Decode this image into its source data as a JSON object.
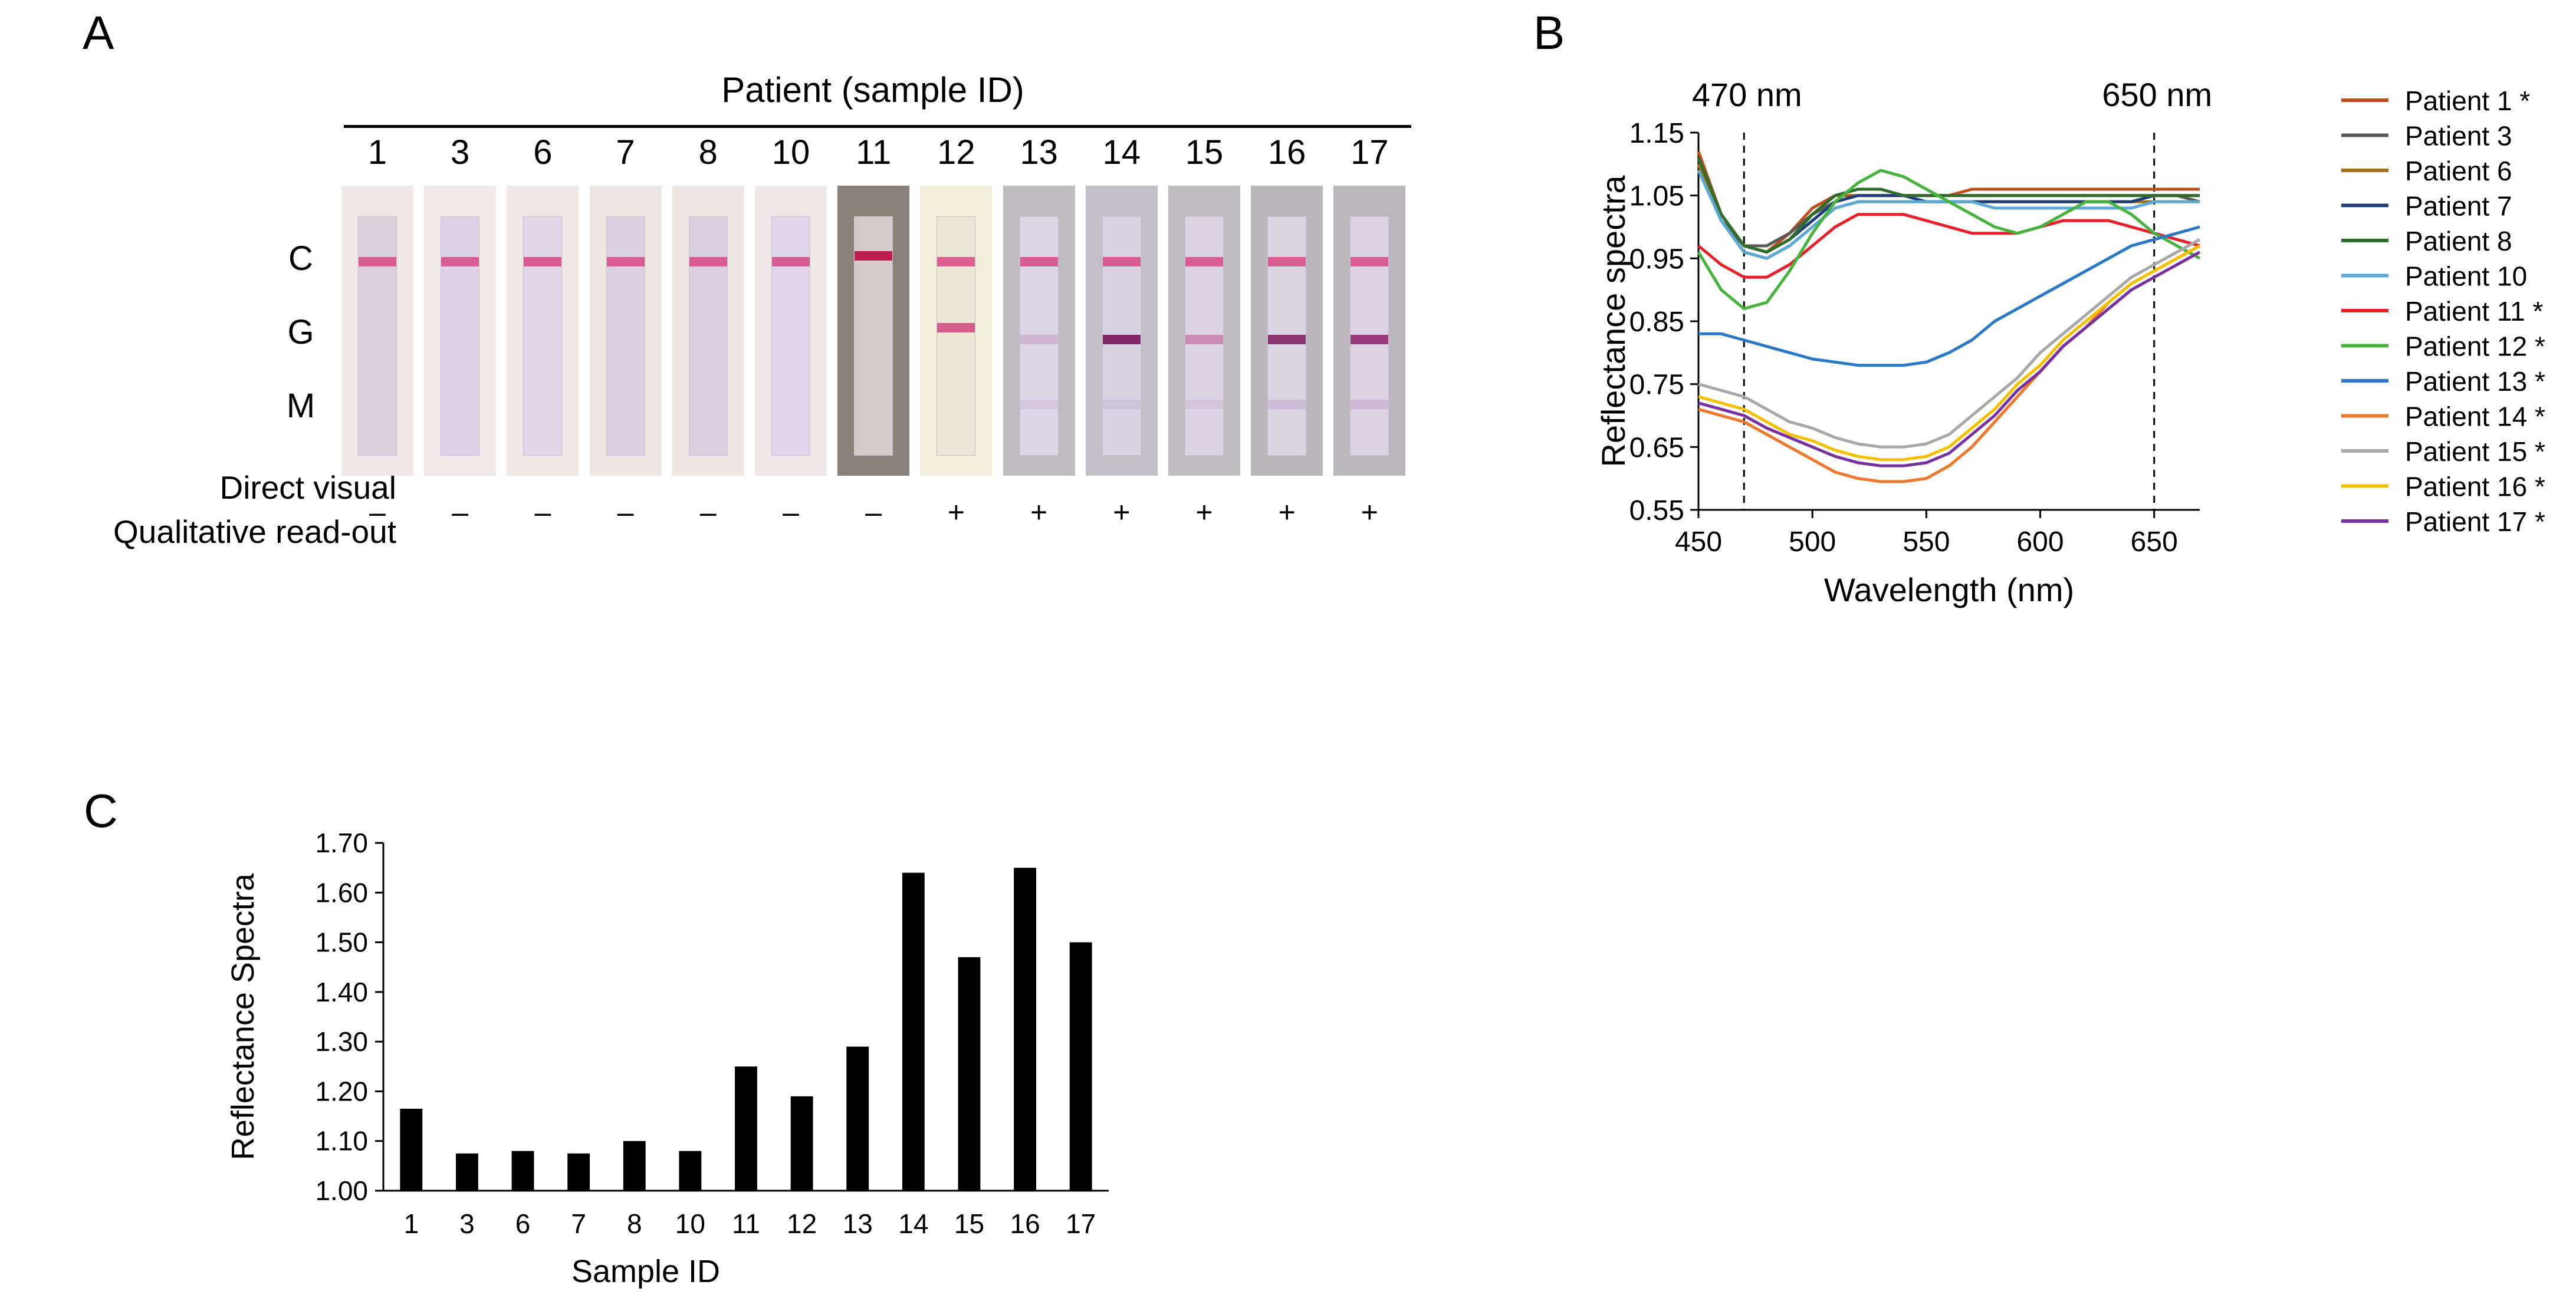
{
  "panels": {
    "a": "A",
    "b": "B",
    "c": "C"
  },
  "panel_a": {
    "title": "Patient (sample ID)",
    "sample_ids": [
      "1",
      "3",
      "6",
      "7",
      "8",
      "10",
      "11",
      "12",
      "13",
      "14",
      "15",
      "16",
      "17"
    ],
    "band_labels": [
      "C",
      "G",
      "M"
    ],
    "row_label_1": "Direct visual",
    "row_label_2": "Qualitative read-out",
    "readouts": [
      "–",
      "–",
      "–",
      "–",
      "–",
      "–",
      "–",
      "+",
      "+",
      "+",
      "+",
      "+",
      "+"
    ]
  },
  "chart_data": [
    {
      "type": "line",
      "xlabel": "Wavelength (nm)",
      "ylabel": "Reflectance spectra",
      "xlim": [
        450,
        670
      ],
      "ylim": [
        0.55,
        1.15
      ],
      "xticks": [
        "450",
        "500",
        "550",
        "600",
        "650"
      ],
      "yticks": [
        "0.55",
        "0.65",
        "0.75",
        "0.85",
        "0.95",
        "1.05",
        "1.15"
      ],
      "annotations": [
        {
          "x": 470,
          "label": "470 nm"
        },
        {
          "x": 650,
          "label": "650 nm"
        }
      ],
      "legend_position": "right",
      "x": [
        450,
        460,
        470,
        480,
        490,
        500,
        510,
        520,
        530,
        540,
        550,
        560,
        570,
        580,
        590,
        600,
        610,
        620,
        630,
        640,
        650,
        660,
        670
      ],
      "series": [
        {
          "name": "Patient 1 *",
          "color": "#c0501a",
          "values": [
            1.12,
            1.02,
            0.97,
            0.96,
            0.99,
            1.03,
            1.05,
            1.05,
            1.05,
            1.05,
            1.05,
            1.05,
            1.06,
            1.06,
            1.06,
            1.06,
            1.06,
            1.06,
            1.06,
            1.06,
            1.06,
            1.06,
            1.06
          ]
        },
        {
          "name": "Patient 3",
          "color": "#5a5a5a",
          "values": [
            1.1,
            1.01,
            0.97,
            0.97,
            0.99,
            1.02,
            1.04,
            1.05,
            1.05,
            1.05,
            1.05,
            1.05,
            1.05,
            1.05,
            1.05,
            1.05,
            1.05,
            1.05,
            1.05,
            1.05,
            1.05,
            1.05,
            1.04
          ]
        },
        {
          "name": "Patient 6",
          "color": "#a86f10",
          "values": [
            1.1,
            1.01,
            0.96,
            0.95,
            0.97,
            1.0,
            1.03,
            1.04,
            1.04,
            1.04,
            1.04,
            1.04,
            1.04,
            1.04,
            1.04,
            1.04,
            1.04,
            1.04,
            1.04,
            1.04,
            1.04,
            1.04,
            1.04
          ]
        },
        {
          "name": "Patient 7",
          "color": "#1f3f7a",
          "values": [
            1.11,
            1.02,
            0.97,
            0.96,
            0.98,
            1.01,
            1.04,
            1.05,
            1.05,
            1.05,
            1.04,
            1.04,
            1.04,
            1.04,
            1.04,
            1.04,
            1.04,
            1.04,
            1.04,
            1.04,
            1.05,
            1.05,
            1.05
          ]
        },
        {
          "name": "Patient 8",
          "color": "#2f6e2a",
          "values": [
            1.11,
            1.02,
            0.97,
            0.96,
            0.98,
            1.02,
            1.05,
            1.06,
            1.06,
            1.05,
            1.05,
            1.05,
            1.05,
            1.05,
            1.05,
            1.05,
            1.05,
            1.05,
            1.05,
            1.05,
            1.05,
            1.05,
            1.05
          ]
        },
        {
          "name": "Patient 10",
          "color": "#5aaad8",
          "values": [
            1.09,
            1.01,
            0.96,
            0.95,
            0.97,
            1.0,
            1.03,
            1.04,
            1.04,
            1.04,
            1.04,
            1.04,
            1.04,
            1.03,
            1.03,
            1.03,
            1.03,
            1.03,
            1.03,
            1.03,
            1.04,
            1.04,
            1.04
          ]
        },
        {
          "name": "Patient 11 *",
          "color": "#e8202a",
          "values": [
            0.97,
            0.94,
            0.92,
            0.92,
            0.94,
            0.97,
            1.0,
            1.02,
            1.02,
            1.02,
            1.01,
            1.0,
            0.99,
            0.99,
            0.99,
            1.0,
            1.01,
            1.01,
            1.01,
            1.0,
            0.99,
            0.98,
            0.97
          ]
        },
        {
          "name": "Patient 12 *",
          "color": "#45b43c",
          "values": [
            0.96,
            0.9,
            0.87,
            0.88,
            0.93,
            0.99,
            1.04,
            1.07,
            1.09,
            1.08,
            1.06,
            1.04,
            1.02,
            1.0,
            0.99,
            1.0,
            1.02,
            1.04,
            1.04,
            1.02,
            0.99,
            0.97,
            0.95
          ]
        },
        {
          "name": "Patient 13 *",
          "color": "#2a78c8",
          "values": [
            0.83,
            0.83,
            0.82,
            0.81,
            0.8,
            0.79,
            0.785,
            0.78,
            0.78,
            0.78,
            0.785,
            0.8,
            0.82,
            0.85,
            0.87,
            0.89,
            0.91,
            0.93,
            0.95,
            0.97,
            0.98,
            0.99,
            1.0
          ]
        },
        {
          "name": "Patient 14 *",
          "color": "#f0782a",
          "values": [
            0.71,
            0.7,
            0.69,
            0.67,
            0.65,
            0.63,
            0.61,
            0.6,
            0.595,
            0.595,
            0.6,
            0.62,
            0.65,
            0.69,
            0.73,
            0.77,
            0.81,
            0.84,
            0.88,
            0.91,
            0.93,
            0.95,
            0.97
          ]
        },
        {
          "name": "Patient 15 *",
          "color": "#a8a8a8",
          "values": [
            0.75,
            0.74,
            0.73,
            0.71,
            0.69,
            0.68,
            0.665,
            0.655,
            0.65,
            0.65,
            0.655,
            0.67,
            0.7,
            0.73,
            0.76,
            0.8,
            0.83,
            0.86,
            0.89,
            0.92,
            0.94,
            0.96,
            0.98
          ]
        },
        {
          "name": "Patient 16 *",
          "color": "#f5c000",
          "values": [
            0.73,
            0.72,
            0.71,
            0.69,
            0.67,
            0.66,
            0.645,
            0.635,
            0.63,
            0.63,
            0.635,
            0.65,
            0.68,
            0.71,
            0.75,
            0.78,
            0.82,
            0.85,
            0.88,
            0.91,
            0.93,
            0.95,
            0.97
          ]
        },
        {
          "name": "Patient 17 *",
          "color": "#7a30a0",
          "values": [
            0.72,
            0.71,
            0.7,
            0.68,
            0.665,
            0.65,
            0.635,
            0.625,
            0.62,
            0.62,
            0.625,
            0.64,
            0.67,
            0.7,
            0.74,
            0.77,
            0.81,
            0.84,
            0.87,
            0.9,
            0.92,
            0.94,
            0.96
          ]
        }
      ]
    },
    {
      "type": "bar",
      "xlabel": "Sample ID",
      "ylabel": "Reflectance Spectra",
      "categories": [
        "1",
        "3",
        "6",
        "7",
        "8",
        "10",
        "11",
        "12",
        "13",
        "14",
        "15",
        "16",
        "17"
      ],
      "values": [
        1.165,
        1.075,
        1.08,
        1.075,
        1.1,
        1.08,
        1.25,
        1.19,
        1.29,
        1.64,
        1.47,
        1.65,
        1.5
      ],
      "ylim": [
        1.0,
        1.7
      ],
      "yticks": [
        "1.00",
        "1.10",
        "1.20",
        "1.30",
        "1.40",
        "1.50",
        "1.60",
        "1.70"
      ],
      "color": "#000000"
    }
  ]
}
